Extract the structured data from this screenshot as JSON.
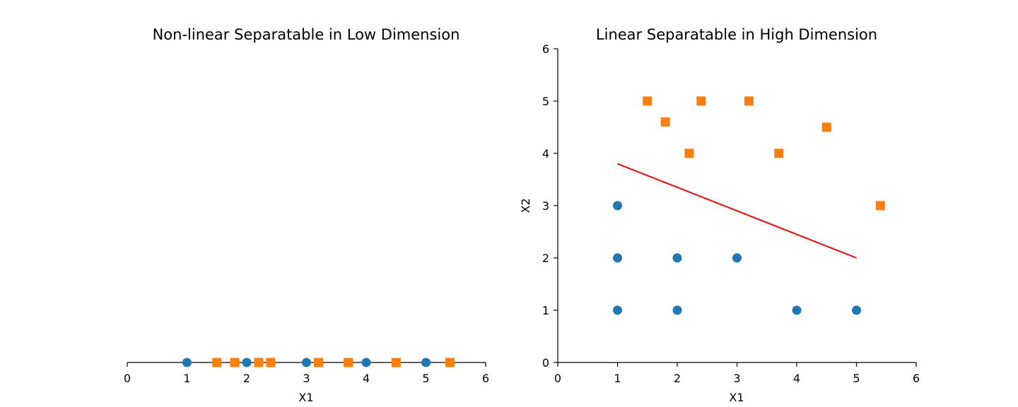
{
  "chart_data": [
    {
      "type": "scatter",
      "title": "Non-linear Separatable in Low Dimension",
      "xlabel": "X1",
      "ylabel": "",
      "xlim": [
        0,
        6
      ],
      "ylim": [
        0,
        0.6
      ],
      "xticks": [
        "0",
        "1",
        "2",
        "3",
        "4",
        "5",
        "6"
      ],
      "yticks": [],
      "grid": false,
      "series": [
        {
          "marker": "circle",
          "color": "#1f77b4",
          "points": [
            [
              1,
              0
            ],
            [
              2,
              0
            ],
            [
              3,
              0
            ],
            [
              4,
              0
            ],
            [
              5,
              0
            ]
          ]
        },
        {
          "marker": "square",
          "color": "#ff7f0e",
          "points": [
            [
              1.5,
              0
            ],
            [
              1.8,
              0
            ],
            [
              2.2,
              0
            ],
            [
              2.4,
              0
            ],
            [
              3.2,
              0
            ],
            [
              3.7,
              0
            ],
            [
              4.5,
              0
            ],
            [
              5.4,
              0
            ]
          ]
        }
      ]
    },
    {
      "type": "scatter",
      "title": "Linear Separatable in High Dimension",
      "xlabel": "X1",
      "ylabel": "X2",
      "xlim": [
        0,
        6
      ],
      "ylim": [
        0,
        6
      ],
      "xticks": [
        "0",
        "1",
        "2",
        "3",
        "4",
        "5",
        "6"
      ],
      "yticks": [
        "0",
        "1",
        "2",
        "3",
        "4",
        "5",
        "6"
      ],
      "grid": false,
      "series": [
        {
          "marker": "circle",
          "color": "#1f77b4",
          "points": [
            [
              1,
              1
            ],
            [
              1,
              2
            ],
            [
              1,
              3
            ],
            [
              2,
              1
            ],
            [
              2,
              2
            ],
            [
              3,
              2
            ],
            [
              4,
              1
            ],
            [
              5,
              1
            ]
          ]
        },
        {
          "marker": "square",
          "color": "#ff7f0e",
          "points": [
            [
              1.5,
              5
            ],
            [
              1.8,
              4.6
            ],
            [
              2.2,
              4
            ],
            [
              2.4,
              5
            ],
            [
              3.2,
              5
            ],
            [
              3.7,
              4
            ],
            [
              4.5,
              4.5
            ],
            [
              5.4,
              3
            ]
          ]
        }
      ],
      "lines": [
        {
          "color": "#e31a1c",
          "points": [
            [
              1,
              3.8
            ],
            [
              5,
              2
            ]
          ]
        }
      ]
    }
  ]
}
